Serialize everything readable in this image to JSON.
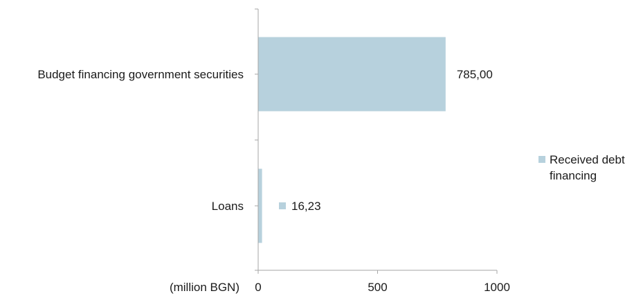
{
  "chart_data": {
    "type": "bar",
    "orientation": "horizontal",
    "categories": [
      "Budget financing government securities",
      "Loans"
    ],
    "series": [
      {
        "name": "Received debt financing",
        "values": [
          785.0,
          16.23
        ],
        "value_labels": [
          "785,00",
          "16,23"
        ],
        "color": "#b7d1dd"
      }
    ],
    "xlabel": "(million BGN)",
    "xlim": [
      0,
      1000
    ],
    "xticks": [
      0,
      500,
      1000
    ],
    "xtick_labels": [
      "0",
      "500",
      "1000"
    ],
    "grid": false,
    "legend": "right"
  }
}
